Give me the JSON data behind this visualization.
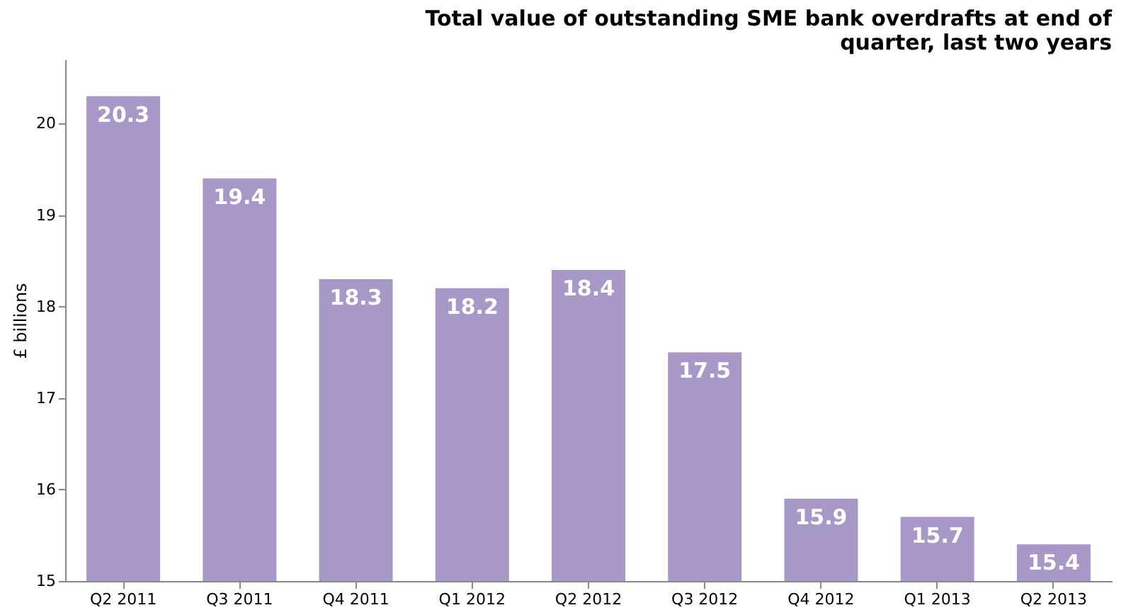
{
  "chart_data": {
    "type": "bar",
    "title": [
      "Total value of outstanding SME bank overdrafts at end of",
      "quarter, last two years"
    ],
    "ylabel": "£ billions",
    "categories": [
      "Q2 2011",
      "Q3 2011",
      "Q4 2011",
      "Q1 2012",
      "Q2 2012",
      "Q3 2012",
      "Q4 2012",
      "Q1 2013",
      "Q2 2013"
    ],
    "values": [
      20.3,
      19.4,
      18.3,
      18.2,
      18.4,
      17.5,
      15.9,
      15.7,
      15.4
    ],
    "color": "#a898c8",
    "ylim": [
      15,
      20.7
    ],
    "yticks": [
      15,
      16,
      17,
      18,
      19,
      20
    ],
    "grid": false,
    "data_labels": true
  }
}
